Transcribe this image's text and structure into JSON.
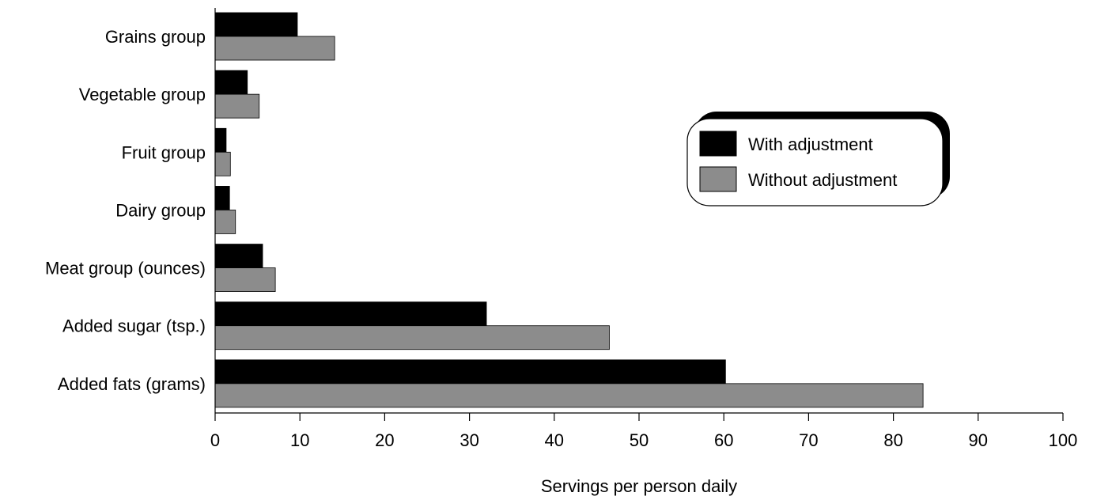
{
  "chart_data": {
    "type": "bar",
    "orientation": "horizontal",
    "title": "",
    "xlabel": "Servings per person daily",
    "ylabel": "",
    "xlim": [
      0,
      100
    ],
    "x_ticks": [
      0,
      10,
      20,
      30,
      40,
      50,
      60,
      70,
      80,
      90,
      100
    ],
    "grid": false,
    "legend_position": "right",
    "categories": [
      "Grains group",
      "Vegetable group",
      "Fruit group",
      "Dairy group",
      "Meat group (ounces)",
      "Added sugar (tsp.)",
      "Added fats (grams)"
    ],
    "series": [
      {
        "name": "With adjustment",
        "color": "#000000",
        "values": [
          9.7,
          3.8,
          1.3,
          1.7,
          5.6,
          32.0,
          60.2
        ]
      },
      {
        "name": "Without adjustment",
        "color": "#8c8c8c",
        "values": [
          14.1,
          5.2,
          1.8,
          2.4,
          7.1,
          46.5,
          83.5
        ]
      }
    ]
  }
}
